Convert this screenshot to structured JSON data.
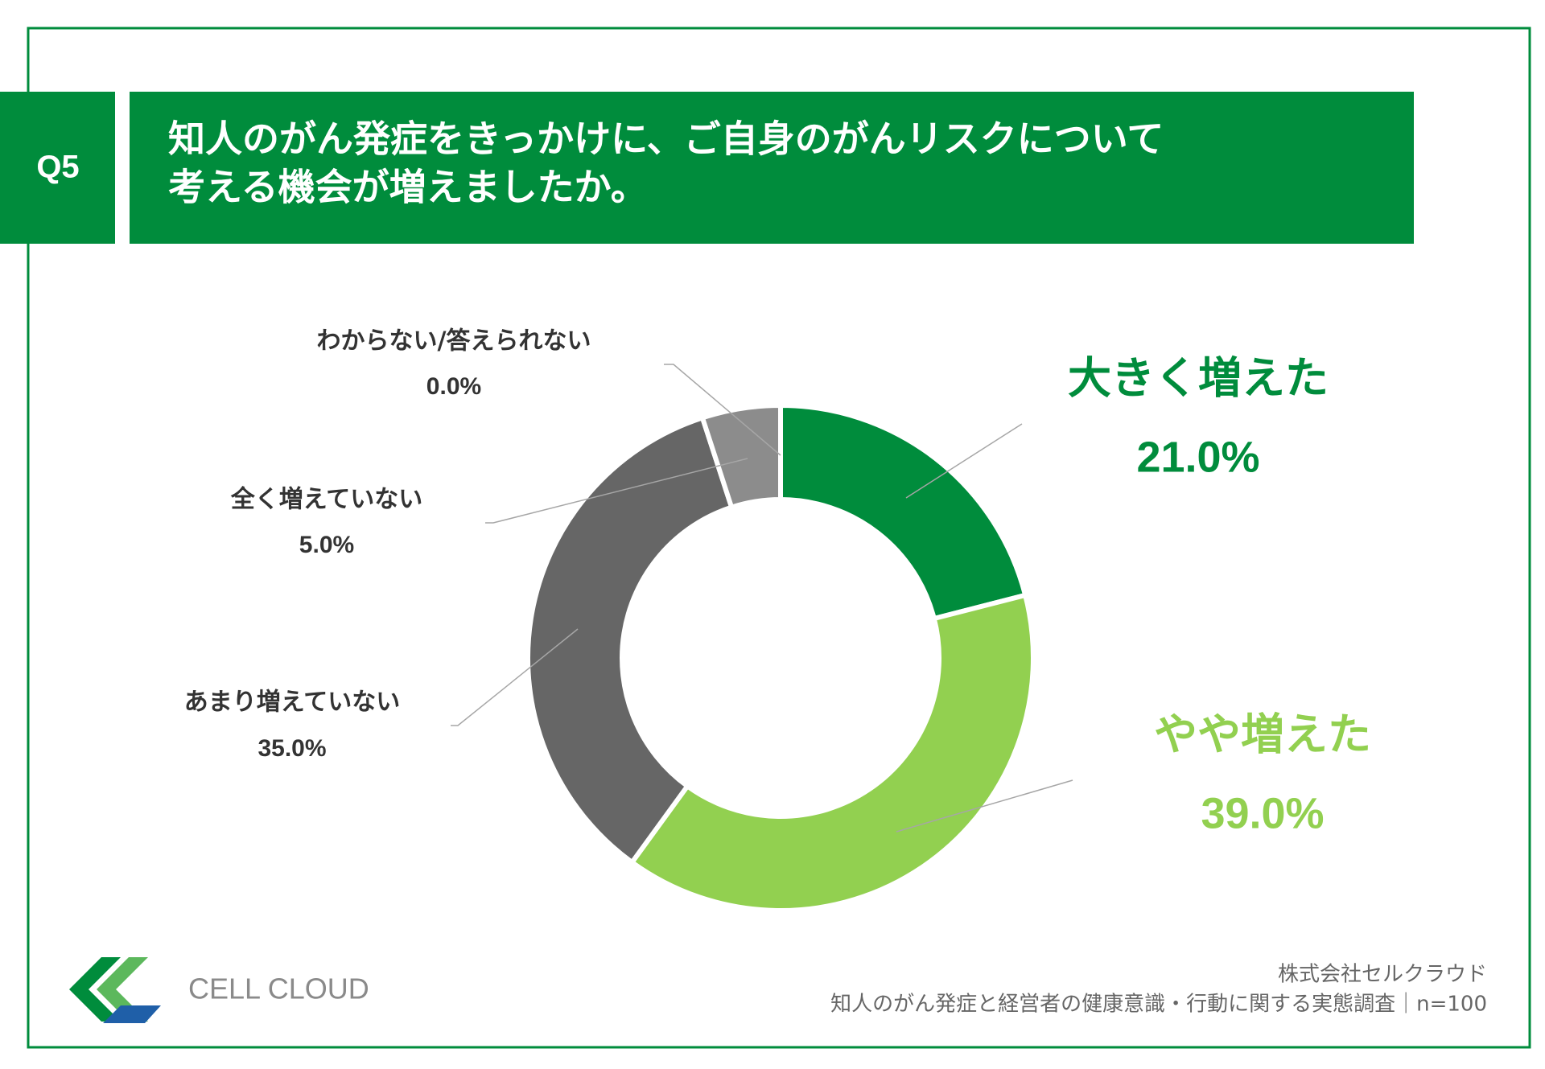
{
  "header": {
    "badge": "Q5",
    "title_lines": [
      "知人のがん発症をきっかけに、ご自身のがんリスクについて",
      "考える機会が増えましたか。"
    ]
  },
  "chart_data": {
    "type": "pie",
    "donut": true,
    "categories": [
      "大きく増えた",
      "やや増えた",
      "あまり増えていない",
      "全く増えていない",
      "わからない/答えられない"
    ],
    "values": [
      21,
      39,
      35,
      5,
      0
    ],
    "value_labels": [
      "21.0%",
      "39.0%",
      "35.0%",
      "5.0%",
      "0.0%"
    ],
    "colors": [
      "#008c3c",
      "#92d050",
      "#666666",
      "#8c8c8c",
      "#bfbfbf"
    ]
  },
  "footer": {
    "logo": "CELL CLOUD",
    "source_lines": [
      "株式会社セルクラウド",
      "知人のがん発症と経営者の健康意識・行動に関する実態調査｜n=100"
    ]
  }
}
